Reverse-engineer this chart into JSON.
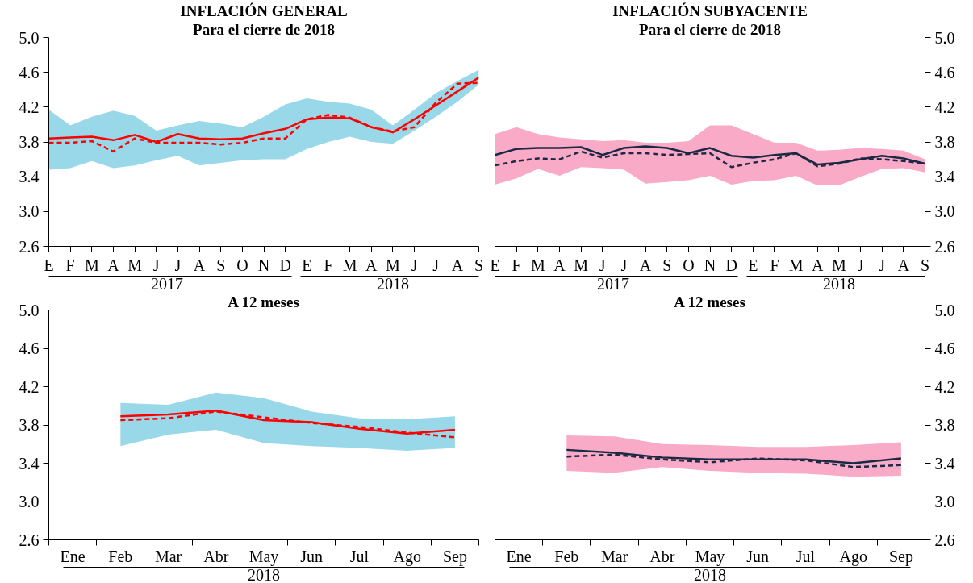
{
  "chart_data": [
    {
      "type": "line",
      "title": "INFLACIÓN GENERAL",
      "subtitle": "Para el cierre de 2018",
      "categories": [
        "E",
        "F",
        "M",
        "A",
        "M",
        "J",
        "J",
        "A",
        "S",
        "O",
        "N",
        "D",
        "E",
        "F",
        "M",
        "A",
        "M",
        "J",
        "J",
        "A",
        "S"
      ],
      "annotations": [
        "2017",
        "2018"
      ],
      "ylim": [
        2.6,
        5.0
      ],
      "yticks": [
        {
          "value": 2.6,
          "label": "2.6"
        },
        {
          "value": 3.0,
          "label": "3.0"
        },
        3.4,
        3.8,
        4.2,
        4.6,
        {
          "value": 5.0,
          "label": "5.0"
        }
      ],
      "grid": false,
      "series": [
        {
          "color": "#ff0000",
          "line_style": "solid",
          "values": [
            3.84,
            3.85,
            3.86,
            3.82,
            3.88,
            3.8,
            3.89,
            3.84,
            3.83,
            3.84,
            3.9,
            3.95,
            4.06,
            4.08,
            4.07,
            3.97,
            3.91,
            4.06,
            4.22,
            4.38,
            4.54
          ],
          "lower": [
            3.48,
            3.5,
            3.58,
            3.5,
            3.53,
            3.59,
            3.64,
            3.53,
            3.56,
            3.59,
            3.6,
            3.6,
            3.72,
            3.8,
            3.86,
            3.8,
            3.78,
            3.93,
            4.09,
            4.26,
            4.46
          ],
          "upper": [
            4.17,
            3.99,
            4.09,
            4.16,
            4.1,
            3.93,
            3.99,
            4.04,
            4.01,
            3.97,
            4.09,
            4.23,
            4.3,
            4.26,
            4.24,
            4.17,
            3.99,
            4.17,
            4.36,
            4.5,
            4.63
          ]
        },
        {
          "color": "#ff0000",
          "line_style": "dashed",
          "values": [
            3.79,
            3.79,
            3.81,
            3.69,
            3.84,
            3.79,
            3.79,
            3.79,
            3.77,
            3.79,
            3.84,
            3.84,
            4.06,
            4.11,
            4.08,
            3.97,
            3.92,
            3.97,
            4.25,
            4.47,
            4.48
          ]
        }
      ]
    },
    {
      "type": "line",
      "title": "INFLACIÓN SUBYACENTE",
      "subtitle": "Para el cierre de 2018",
      "categories": [
        "E",
        "F",
        "M",
        "A",
        "M",
        "J",
        "J",
        "A",
        "S",
        "O",
        "N",
        "D",
        "E",
        "F",
        "M",
        "A",
        "M",
        "J",
        "J",
        "A",
        "S"
      ],
      "annotations": [
        "2017",
        "2018"
      ],
      "y2lim": [
        2.6,
        5.0
      ],
      "y2ticks": [
        {
          "value": 2.6,
          "label": "2.6"
        },
        {
          "value": 3.0,
          "label": "3.0"
        },
        3.4,
        3.8,
        4.2,
        4.6,
        {
          "value": 5.0,
          "label": "5.0"
        }
      ],
      "grid": false,
      "series": [
        {
          "axis": "y2",
          "color": "#1b2a44",
          "line_style": "solid",
          "values": [
            3.65,
            3.72,
            3.73,
            3.73,
            3.74,
            3.65,
            3.73,
            3.75,
            3.73,
            3.67,
            3.73,
            3.64,
            3.62,
            3.65,
            3.67,
            3.54,
            3.56,
            3.6,
            3.64,
            3.61,
            3.55
          ],
          "lower": [
            3.31,
            3.38,
            3.49,
            3.41,
            3.51,
            3.5,
            3.48,
            3.32,
            3.34,
            3.36,
            3.41,
            3.31,
            3.35,
            3.36,
            3.41,
            3.3,
            3.3,
            3.4,
            3.49,
            3.5,
            3.45
          ],
          "upper": [
            3.89,
            3.97,
            3.89,
            3.85,
            3.83,
            3.81,
            3.82,
            3.79,
            3.79,
            3.81,
            3.99,
            3.99,
            3.89,
            3.79,
            3.79,
            3.7,
            3.71,
            3.73,
            3.72,
            3.7,
            3.6
          ]
        },
        {
          "axis": "y2",
          "color": "#1b2a44",
          "line_style": "dashed",
          "values": [
            3.53,
            3.58,
            3.61,
            3.6,
            3.69,
            3.62,
            3.67,
            3.67,
            3.65,
            3.66,
            3.67,
            3.51,
            3.56,
            3.6,
            3.67,
            3.52,
            3.55,
            3.61,
            3.6,
            3.58,
            3.55
          ]
        }
      ]
    },
    {
      "type": "line",
      "title": "A 12 meses",
      "categories": [
        "Ene",
        "Feb",
        "Mar",
        "Abr",
        "May",
        "Jun",
        "Jul",
        "Ago",
        "Sep"
      ],
      "xlabel": "2018",
      "ylim": [
        2.6,
        5.0
      ],
      "yticks": [
        {
          "value": 2.6,
          "label": "2.6"
        },
        {
          "value": 3.0,
          "label": "3.0"
        },
        3.4,
        3.8,
        4.2,
        4.6,
        {
          "value": 5.0,
          "label": "5.0"
        }
      ],
      "grid": false,
      "series": [
        {
          "color": "#ff0000",
          "line_style": "solid",
          "values": [
            null,
            3.89,
            3.91,
            3.95,
            3.85,
            3.83,
            3.76,
            3.71,
            3.75
          ],
          "lower": [
            null,
            3.58,
            3.7,
            3.75,
            3.61,
            3.58,
            3.56,
            3.53,
            3.56
          ],
          "upper": [
            null,
            4.03,
            4.01,
            4.14,
            4.08,
            3.94,
            3.87,
            3.86,
            3.89
          ]
        },
        {
          "color": "#ff0000",
          "line_style": "dashed",
          "values": [
            null,
            3.85,
            3.87,
            3.94,
            3.88,
            3.82,
            3.78,
            3.72,
            3.67
          ]
        }
      ]
    },
    {
      "type": "line",
      "title": "A 12 meses",
      "categories": [
        "Ene",
        "Feb",
        "Mar",
        "Abr",
        "May",
        "Jun",
        "Jul",
        "Ago",
        "Sep"
      ],
      "xlabel": "2018",
      "y2lim": [
        2.6,
        5.0
      ],
      "y2ticks": [
        {
          "value": 2.6,
          "label": "2.6"
        },
        {
          "value": 3.0,
          "label": "3.0"
        },
        3.4,
        3.8,
        4.2,
        4.6,
        {
          "value": 5.0,
          "label": "5.0"
        }
      ],
      "grid": false,
      "series": [
        {
          "axis": "y2",
          "color": "#1b2a44",
          "line_style": "solid",
          "values": [
            null,
            3.54,
            3.51,
            3.46,
            3.44,
            3.44,
            3.44,
            3.4,
            3.45
          ],
          "lower": [
            null,
            3.32,
            3.3,
            3.36,
            3.32,
            3.3,
            3.29,
            3.26,
            3.27
          ],
          "upper": [
            null,
            3.69,
            3.68,
            3.6,
            3.59,
            3.57,
            3.57,
            3.59,
            3.62
          ]
        },
        {
          "axis": "y2",
          "color": "#1b2a44",
          "line_style": "dashed",
          "values": [
            null,
            3.47,
            3.49,
            3.44,
            3.41,
            3.45,
            3.43,
            3.36,
            3.38
          ]
        }
      ]
    }
  ]
}
